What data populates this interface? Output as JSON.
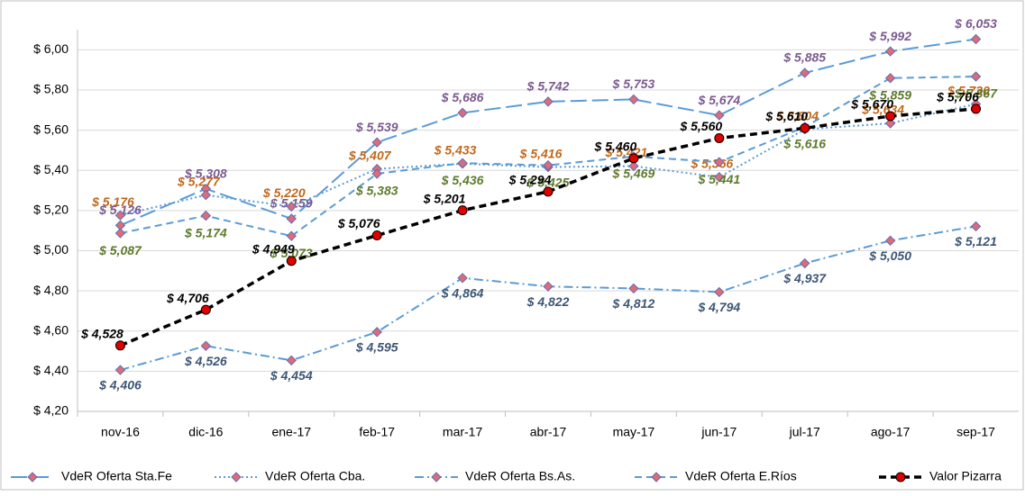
{
  "chart_data": {
    "type": "line",
    "categories": [
      "nov-16",
      "dic-16",
      "ene-17",
      "feb-17",
      "mar-17",
      "abr-17",
      "may-17",
      "jun-17",
      "jul-17",
      "ago-17",
      "sep-17"
    ],
    "ylim": [
      4.2,
      6.1
    ],
    "yticks": [
      {
        "value": 4.2,
        "label": "$ 4,20"
      },
      {
        "value": 4.4,
        "label": "$ 4,40"
      },
      {
        "value": 4.6,
        "label": "$ 4,60"
      },
      {
        "value": 4.8,
        "label": "$ 4,80"
      },
      {
        "value": 5.0,
        "label": "$ 5,00"
      },
      {
        "value": 5.2,
        "label": "$ 5,20"
      },
      {
        "value": 5.4,
        "label": "$ 5,40"
      },
      {
        "value": 5.6,
        "label": "$ 5,60"
      },
      {
        "value": 5.8,
        "label": "$ 5,80"
      },
      {
        "value": 6.0,
        "label": "$ 6,00"
      }
    ],
    "grid": true,
    "legend": "bottom",
    "series": [
      {
        "name": "VdeR Oferta Sta.Fe",
        "color": "#5b9bd5",
        "label_color": "#7b5a91",
        "dash": "18 6",
        "marker": "diamond",
        "values": [
          5.126,
          5.308,
          5.159,
          5.539,
          5.686,
          5.742,
          5.753,
          5.674,
          5.885,
          5.992,
          6.053
        ],
        "value_labels": [
          "$ 5,126",
          "$ 5,308",
          "$ 5,159",
          "$ 5,539",
          "$ 5,686",
          "$ 5,742",
          "$ 5,753",
          "$ 5,674",
          "$ 5,885",
          "$ 5,992",
          "$ 6,053"
        ]
      },
      {
        "name": "VdeR Oferta Cba.",
        "color": "#5b9bd5",
        "label_color": "#c0681c",
        "dash": "2 3",
        "marker": "diamond",
        "values": [
          5.176,
          5.277,
          5.22,
          5.407,
          5.433,
          5.416,
          5.421,
          5.366,
          5.604,
          5.634,
          5.73
        ],
        "value_labels": [
          "$ 5,176",
          "$ 5,277",
          "$ 5,220",
          "$ 5,407",
          "$ 5,433",
          "$ 5,416",
          "$ 5,421",
          "$ 5,366",
          "$ 5,604",
          "$ 5,634",
          "$ 5,730"
        ]
      },
      {
        "name": "VdeR Oferta Bs.As.",
        "color": "#5b9bd5",
        "label_color": "#3d5676",
        "dash": "10 4 2 4",
        "marker": "diamond",
        "values": [
          4.406,
          4.526,
          4.454,
          4.595,
          4.864,
          4.822,
          4.812,
          4.794,
          4.937,
          5.05,
          5.121
        ],
        "value_labels": [
          "$ 4,406",
          "$ 4,526",
          "$ 4,454",
          "$ 4,595",
          "$ 4,864",
          "$ 4,822",
          "$ 4,812",
          "$ 4,794",
          "$ 4,937",
          "$ 5,050",
          "$ 5,121"
        ]
      },
      {
        "name": "VdeR Oferta E.Ríos",
        "color": "#5b9bd5",
        "label_color": "#5e7a2c",
        "dash": "8 5",
        "marker": "diamond",
        "values": [
          5.087,
          5.174,
          5.073,
          5.383,
          5.436,
          5.425,
          5.469,
          5.441,
          5.616,
          5.859,
          5.867
        ],
        "value_labels": [
          "$ 5,087",
          "$ 5,174",
          "$ 5,073",
          "$ 5,383",
          "$ 5,436",
          "$ 5,425",
          "$ 5,469",
          "$ 5,441",
          "$ 5,616",
          "$ 5,859",
          "$ 5,867"
        ]
      },
      {
        "name": "Valor Pizarra",
        "color": "#000000",
        "label_color": "#000000",
        "dash": "8 5",
        "marker": "circle",
        "values": [
          4.528,
          4.706,
          4.949,
          5.076,
          5.201,
          5.294,
          5.46,
          5.56,
          5.61,
          5.67,
          5.706
        ],
        "value_labels": [
          "$ 4,528",
          "$ 4,706",
          "$ 4,949",
          "$ 5,076",
          "$ 5,201",
          "$ 5,294",
          "$ 5,460",
          "$ 5,560",
          "$ 5,610",
          "$ 5,670",
          "$ 5,706"
        ]
      }
    ]
  }
}
